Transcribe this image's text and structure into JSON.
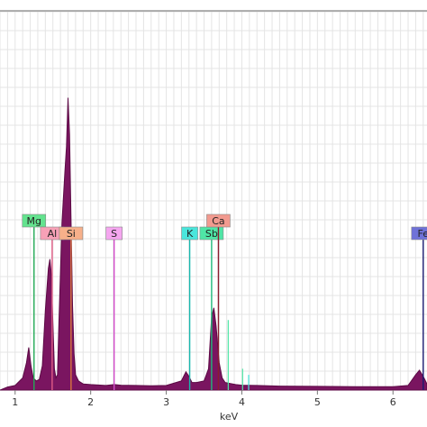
{
  "chart_data": {
    "type": "line",
    "xlabel": "keV",
    "ylabel": "",
    "title": "",
    "xlim": [
      0.8,
      6.45
    ],
    "ylim": [
      0,
      100
    ],
    "grid": true,
    "x_ticks": [
      1,
      2,
      3,
      4,
      5,
      6
    ],
    "colors": {
      "spectrum": "#7a1560",
      "spectrum_stroke": "#5c0a45",
      "grid": "#e4e4e4",
      "axis": "#9a9a9a"
    },
    "series": [
      {
        "values_x": [
          0.8,
          0.9,
          1.0,
          1.1,
          1.15,
          1.18,
          1.21,
          1.24,
          1.28,
          1.32,
          1.36,
          1.4,
          1.44,
          1.46,
          1.48,
          1.5,
          1.52,
          1.54,
          1.56,
          1.58,
          1.62,
          1.66,
          1.68,
          1.7,
          1.72,
          1.74,
          1.76,
          1.78,
          1.8,
          1.84,
          1.9,
          2.0,
          2.2,
          2.31,
          2.4,
          2.6,
          2.8,
          3.0,
          3.2,
          3.26,
          3.3,
          3.34,
          3.4,
          3.5,
          3.56,
          3.6,
          3.63,
          3.66,
          3.7,
          3.74,
          3.78,
          3.84,
          3.92,
          4.0,
          4.2,
          4.5,
          5.0,
          5.5,
          6.0,
          6.2,
          6.3,
          6.35,
          6.4,
          6.45
        ],
        "values_y": [
          0,
          1,
          1.5,
          4,
          9,
          14,
          8,
          4,
          3,
          3.5,
          8,
          26,
          40,
          43,
          38,
          22,
          7,
          4,
          5,
          22,
          55,
          72,
          80,
          96,
          84,
          55,
          28,
          12,
          5,
          3,
          2,
          1.8,
          1.5,
          1.8,
          1.6,
          1.5,
          1.4,
          1.5,
          3,
          6,
          4.5,
          2.5,
          2.5,
          3,
          7,
          24,
          27,
          21,
          9,
          4,
          2.5,
          2.2,
          1.8,
          1.6,
          1.5,
          1.3,
          1.2,
          1.1,
          1.1,
          1.5,
          5,
          6.5,
          4.5,
          2
        ]
      }
    ],
    "element_markers": [
      {
        "label": "Mg",
        "x": 1.25,
        "marker_top": 71,
        "color": "#63e38e",
        "line_color": "#22aa55",
        "label_row": 1
      },
      {
        "label": "Al",
        "x": 1.49,
        "marker_top": 67,
        "color": "#f7a1b7",
        "line_color": "#e05c86",
        "label_row": 2
      },
      {
        "label": "Si",
        "x": 1.74,
        "marker_top": 67,
        "color": "#f7b08a",
        "line_color": "#d9763f",
        "label_row": 2
      },
      {
        "label": "S",
        "x": 2.31,
        "marker_top": 67,
        "color": "#f5a6f0",
        "line_color": "#d14bc9",
        "label_row": 2
      },
      {
        "label": "K",
        "x": 3.31,
        "marker_top": 67,
        "color": "#49e6dc",
        "line_color": "#18b8ae",
        "label_row": 2
      },
      {
        "label": "Sb",
        "x": 3.6,
        "marker_top": 67,
        "color": "#4fe6a6",
        "line_color": "#1fb87a",
        "label_row": 2
      },
      {
        "label": "Ca",
        "x": 3.69,
        "marker_top": 71,
        "color": "#f29a8f",
        "line_color": "#8b1d2f",
        "label_row": 1
      },
      {
        "label": "Fe",
        "x": 6.4,
        "marker_top": 67,
        "color": "#6f72d8",
        "line_color": "#1a1a70",
        "label_row": 2
      }
    ],
    "minor_lines": [
      {
        "x": 3.82,
        "top": 23,
        "color": "#4fe6a6"
      },
      {
        "x": 4.01,
        "top": 7,
        "color": "#4fe6a6"
      },
      {
        "x": 4.09,
        "top": 5,
        "color": "#49e6dc"
      }
    ]
  }
}
